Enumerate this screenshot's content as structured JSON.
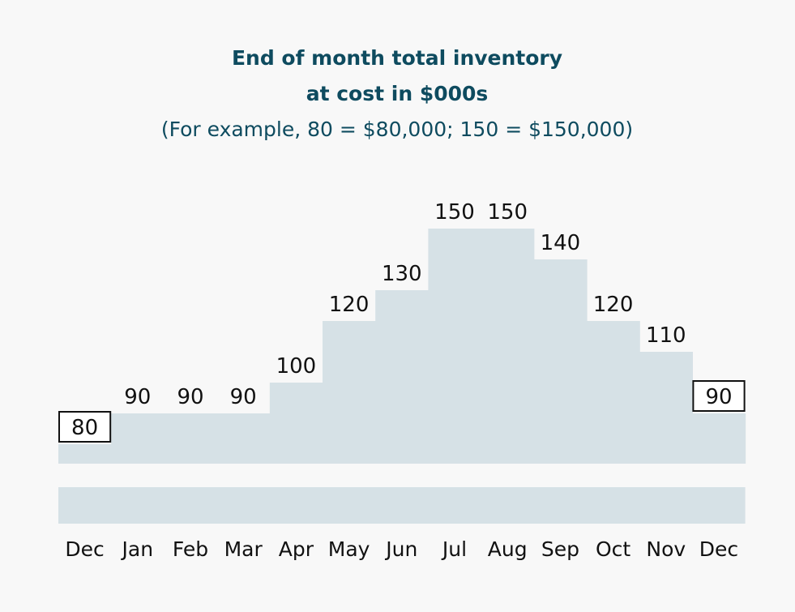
{
  "chart_data": {
    "type": "area",
    "title_lines": [
      "End of month total inventory",
      "at cost in $000s"
    ],
    "subtitle": "(For example, 80 = $80,000; 150 = $150,000)",
    "categories": [
      "Dec",
      "Jan",
      "Feb",
      "Mar",
      "Apr",
      "May",
      "Jun",
      "Jul",
      "Aug",
      "Sep",
      "Oct",
      "Nov",
      "Dec"
    ],
    "values": [
      80,
      90,
      90,
      90,
      100,
      120,
      130,
      150,
      150,
      140,
      120,
      110,
      90
    ],
    "boxed_indices": [
      0,
      12
    ],
    "fill_color": "#d6e1e6",
    "title_color": "#0e4b5f",
    "grid": false
  }
}
